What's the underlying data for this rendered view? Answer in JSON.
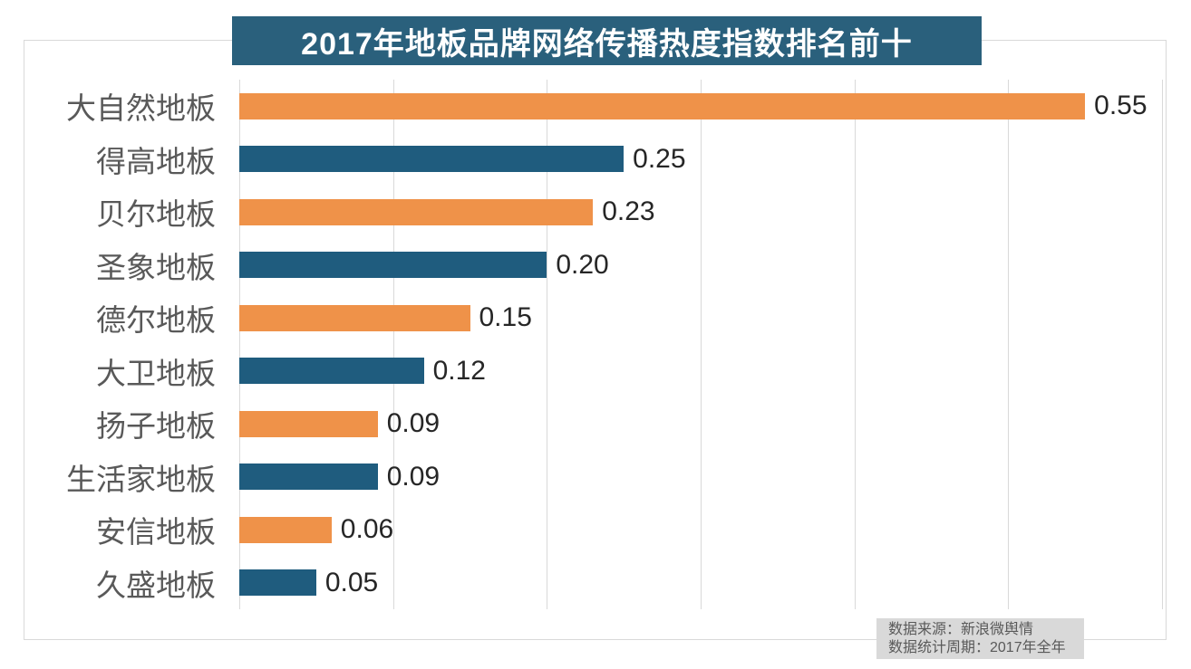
{
  "title": {
    "text": "2017年地板品牌网络传播热度指数排名前十"
  },
  "chart_data": {
    "type": "bar",
    "orientation": "horizontal",
    "title": "2017年地板品牌网络传播热度指数排名前十",
    "categories": [
      "大自然地板",
      "得高地板",
      "贝尔地板",
      "圣象地板",
      "德尔地板",
      "大卫地板",
      "扬子地板",
      "生活家地板",
      "安信地板",
      "久盛地板"
    ],
    "values": [
      0.55,
      0.25,
      0.23,
      0.2,
      0.15,
      0.12,
      0.09,
      0.09,
      0.06,
      0.05
    ],
    "value_labels": [
      "0.55",
      "0.25",
      "0.23",
      "0.20",
      "0.15",
      "0.12",
      "0.09",
      "0.09",
      "0.06",
      "0.05"
    ],
    "xlabel": "",
    "ylabel": "",
    "xlim": [
      0,
      0.6
    ],
    "gridline_interval": 0.1,
    "grid": true,
    "legend": false,
    "bar_colors_alternating": [
      "#ef9249",
      "#1f5c7e"
    ]
  },
  "footer": {
    "source_line": "数据来源：新浪微舆情",
    "period_line": "数据统计周期：2017年全年"
  },
  "colors": {
    "banner_bg": "#2a607c",
    "bar_orange": "#ef9249",
    "bar_blue": "#1f5c7e",
    "gridline": "#d9d9d9",
    "frame_border": "#d9d9d9",
    "category_text": "#595959",
    "value_text": "#262626",
    "footer_bg": "#d9d9d9",
    "footer_text": "#595959",
    "title_text": "#ffffff"
  }
}
